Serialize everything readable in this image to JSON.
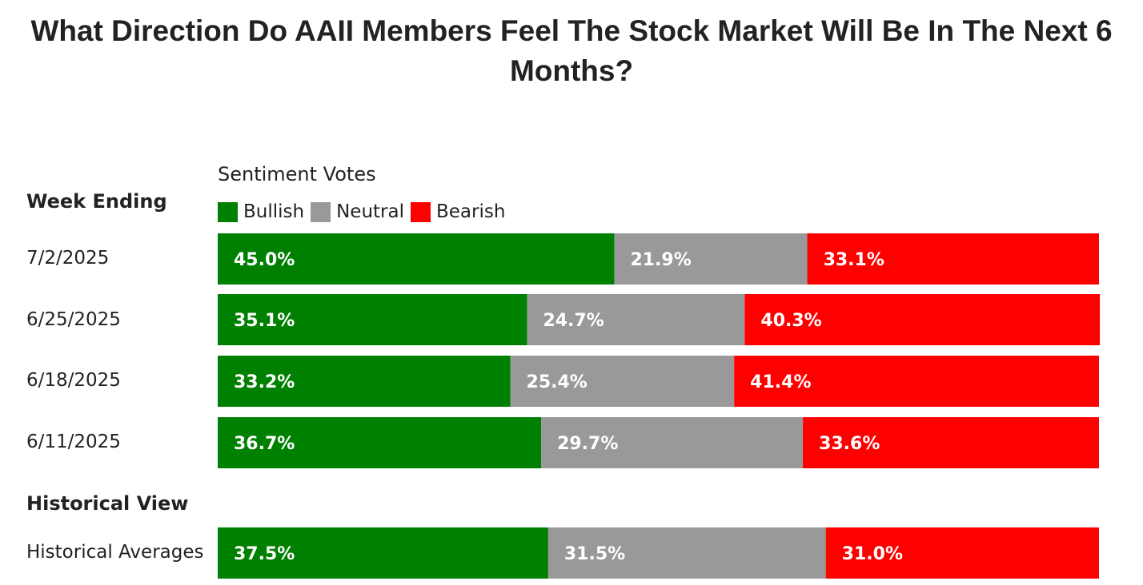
{
  "chart_data": {
    "type": "bar",
    "stacked": true,
    "orientation": "horizontal",
    "title": "What Direction Do AAII Members Feel The Stock Market Will Be In The Next 6 Months?",
    "legend_title": "Sentiment Votes",
    "legend_placement": "top",
    "section_labels": [
      "Week Ending",
      "Historical View"
    ],
    "categories": [
      "7/2/2025",
      "6/25/2025",
      "6/18/2025",
      "6/11/2025",
      "Historical Averages"
    ],
    "series": [
      {
        "name": "Bullish",
        "color": "#008000",
        "values": [
          45.0,
          35.1,
          33.2,
          36.7,
          37.5
        ]
      },
      {
        "name": "Neutral",
        "color": "#999999",
        "values": [
          21.9,
          24.7,
          25.4,
          29.7,
          31.5
        ]
      },
      {
        "name": "Bearish",
        "color": "#ff0000",
        "values": [
          33.1,
          40.3,
          41.4,
          33.6,
          31.0
        ]
      }
    ],
    "value_format": "percent, 1 decimal",
    "xlim": [
      0,
      100
    ],
    "grid": false
  }
}
